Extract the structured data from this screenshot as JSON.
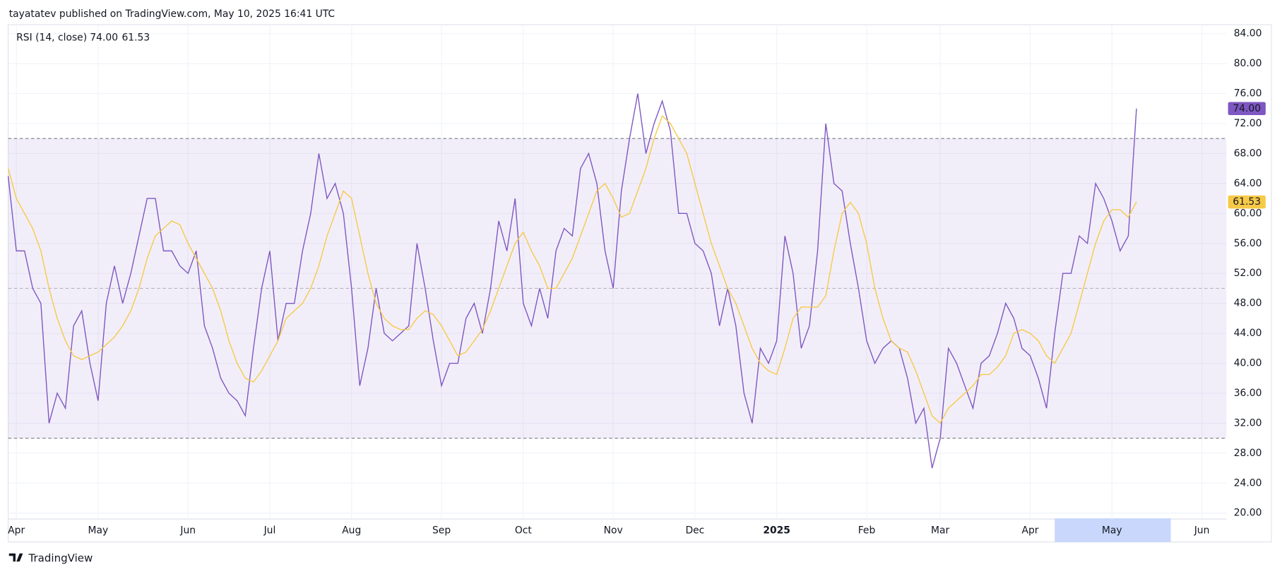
{
  "header": "tayatatev published on TradingView.com, May 10, 2025 16:41 UTC",
  "footer": "TradingView",
  "chart_data": {
    "type": "line",
    "title": "RSI (14, close)",
    "categories": [
      null,
      "Apr",
      null,
      null,
      null,
      null,
      null,
      null,
      null,
      null,
      null,
      "May",
      null,
      null,
      null,
      null,
      null,
      null,
      null,
      null,
      null,
      null,
      "Jun",
      null,
      null,
      null,
      null,
      null,
      null,
      null,
      null,
      null,
      "Jul",
      null,
      null,
      null,
      null,
      null,
      null,
      null,
      null,
      null,
      "Aug",
      null,
      null,
      null,
      null,
      null,
      null,
      null,
      null,
      null,
      null,
      "Sep",
      null,
      null,
      null,
      null,
      null,
      null,
      null,
      null,
      null,
      "Oct",
      null,
      null,
      null,
      null,
      null,
      null,
      null,
      null,
      null,
      null,
      "Nov",
      null,
      null,
      null,
      null,
      null,
      null,
      null,
      null,
      null,
      "Dec",
      null,
      null,
      null,
      null,
      null,
      null,
      null,
      null,
      null,
      "2025",
      null,
      null,
      null,
      null,
      null,
      null,
      null,
      null,
      null,
      null,
      "Feb",
      null,
      null,
      null,
      null,
      null,
      null,
      null,
      null,
      "Mar",
      null,
      null,
      null,
      null,
      null,
      null,
      null,
      null,
      null,
      null,
      "Apr",
      null,
      null,
      null,
      null,
      null,
      null,
      null,
      null,
      null,
      "May",
      null,
      null,
      null,
      null,
      null,
      null,
      null,
      null,
      null,
      null,
      "Jun"
    ],
    "series": [
      {
        "color": "#7e57c2",
        "last_label": "74.00",
        "values": [
          65,
          55,
          55,
          50,
          48,
          32,
          36,
          34,
          45,
          47,
          40,
          35,
          48,
          53,
          48,
          52,
          57,
          62,
          62,
          55,
          55,
          53,
          52,
          55,
          45,
          42,
          38,
          36,
          35,
          33,
          42,
          50,
          55,
          43,
          48,
          48,
          55,
          60,
          68,
          62,
          64,
          60,
          50,
          37,
          42,
          50,
          44,
          43,
          44,
          45,
          56,
          50,
          43,
          37,
          40,
          40,
          46,
          48,
          44,
          50,
          59,
          55,
          62,
          48,
          45,
          50,
          46,
          55,
          58,
          57,
          66,
          68,
          64,
          55,
          50,
          63,
          70,
          76,
          68,
          72,
          75,
          71,
          60,
          60,
          56,
          55,
          52,
          45,
          50,
          45,
          36,
          32,
          42,
          40,
          43,
          57,
          52,
          42,
          45,
          55,
          72,
          64,
          63,
          56,
          50,
          43,
          40,
          42,
          43,
          42,
          38,
          32,
          34,
          26,
          30,
          42,
          40,
          37,
          34,
          40,
          41,
          44,
          48,
          46,
          42,
          41,
          38,
          34,
          44,
          52,
          52,
          57,
          56,
          64,
          62,
          59,
          55,
          57,
          74,
          null,
          null,
          null,
          null,
          null,
          null,
          null,
          null
        ]
      },
      {
        "color": "#f7c948",
        "last_label": "61.53",
        "values": [
          66,
          62,
          60,
          58,
          55,
          50,
          46,
          43,
          41,
          40.5,
          41,
          41.5,
          42.5,
          43.5,
          45,
          47,
          50,
          54,
          57,
          58,
          59,
          58.5,
          56,
          54,
          52,
          50,
          47,
          43,
          40,
          38,
          37.5,
          39,
          41,
          43,
          46,
          47,
          48,
          50,
          53,
          57,
          60,
          63,
          62,
          57,
          52,
          48,
          46,
          45,
          44.5,
          44.5,
          46,
          47,
          46.5,
          45,
          43,
          41,
          41.5,
          43,
          44.5,
          47,
          50,
          53,
          56,
          57.5,
          55,
          53,
          50,
          50,
          52,
          54,
          57,
          60,
          63,
          64,
          62,
          59.5,
          60,
          63,
          66,
          70,
          73,
          72,
          70,
          68,
          64,
          60,
          56,
          53,
          50,
          48,
          45,
          42,
          40,
          39,
          38.5,
          42,
          46,
          47.5,
          47.5,
          47.5,
          49,
          55,
          60,
          61.5,
          60,
          56,
          50,
          46,
          43,
          42,
          41.5,
          39,
          36,
          33,
          32,
          34,
          35,
          36,
          37,
          38.5,
          38.5,
          39.5,
          41,
          44,
          44.5,
          44,
          43,
          41,
          40,
          42,
          44,
          48,
          52,
          56,
          59,
          60.5,
          60.5,
          59.5,
          61.53,
          null,
          null,
          null,
          null,
          null,
          null,
          null,
          null
        ]
      }
    ],
    "ylim": [
      19.2,
      85.2
    ],
    "yticks": [
      {
        "value": 20,
        "label": "20.00"
      },
      {
        "value": 24,
        "label": "24.00"
      },
      {
        "value": 28,
        "label": "28.00"
      },
      {
        "value": 32,
        "label": "32.00"
      },
      {
        "value": 36,
        "label": "36.00"
      },
      {
        "value": 40,
        "label": "40.00"
      },
      {
        "value": 44,
        "label": "44.00"
      },
      {
        "value": 48,
        "label": "48.00"
      },
      {
        "value": 52,
        "label": "52.00"
      },
      {
        "value": 56,
        "label": "56.00"
      },
      {
        "value": 60,
        "label": "60.00"
      },
      {
        "value": 64,
        "label": "64.00"
      },
      {
        "value": 68,
        "label": "68.00"
      },
      {
        "value": 72,
        "label": "72.00"
      },
      {
        "value": 76,
        "label": "76.00"
      },
      {
        "value": 80,
        "label": "80.00"
      },
      {
        "value": 84,
        "label": "84.00"
      }
    ],
    "grid": true,
    "bands": {
      "upper": 70,
      "middle": 50,
      "lower": 30
    }
  }
}
